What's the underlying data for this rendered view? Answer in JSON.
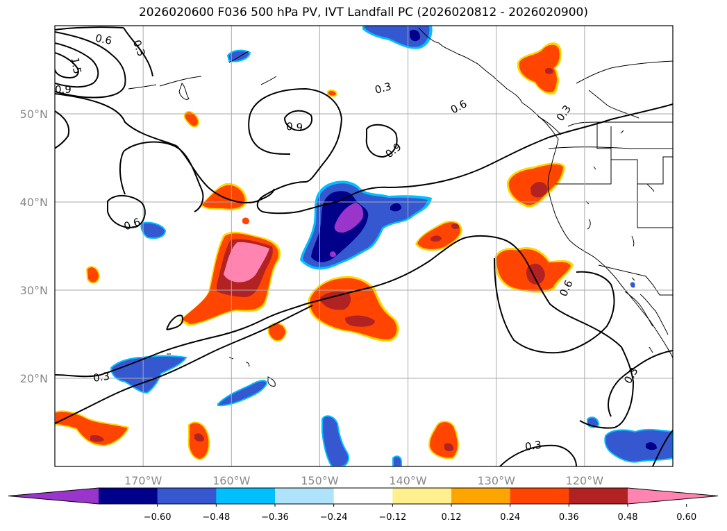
{
  "title": "2026020600 F036 500 hPa PV, IVT Landfall PC (2026020812 - 2026020900)",
  "map": {
    "lon_range": [
      -180,
      -110
    ],
    "lat_range": [
      10,
      60
    ],
    "lat_ticks": [
      {
        "value": 20,
        "label": "20°N"
      },
      {
        "value": 30,
        "label": "30°N"
      },
      {
        "value": 40,
        "label": "40°N"
      },
      {
        "value": 50,
        "label": "50°N"
      }
    ],
    "lon_ticks": [
      {
        "value": -170,
        "label": "170°W"
      },
      {
        "value": -160,
        "label": "160°W"
      },
      {
        "value": -150,
        "label": "150°W"
      },
      {
        "value": -140,
        "label": "140°W"
      },
      {
        "value": -130,
        "label": "130°W"
      },
      {
        "value": -120,
        "label": "120°W"
      }
    ],
    "grid": true
  },
  "colorbar": {
    "extend": "both",
    "colors": [
      "#9a35cc",
      "#00008b",
      "#3558d0",
      "#00bfff",
      "#aee3fb",
      "#ffffff",
      "#fff08f",
      "#ffa500",
      "#ff4500",
      "#b22222",
      "#ff85b0"
    ],
    "tick_labels": [
      "−0.60",
      "−0.48",
      "−0.36",
      "−0.24",
      "−0.12",
      "0.12",
      "0.24",
      "0.36",
      "0.48",
      "0.60"
    ]
  },
  "contour_labels": [
    "0.6",
    "0.3",
    "1.5",
    "0.9",
    "0.3",
    "0.6",
    "0.9",
    "0.9",
    "0.3",
    "0.6",
    "0.3",
    "0.6",
    "0.3",
    "0.3"
  ]
}
